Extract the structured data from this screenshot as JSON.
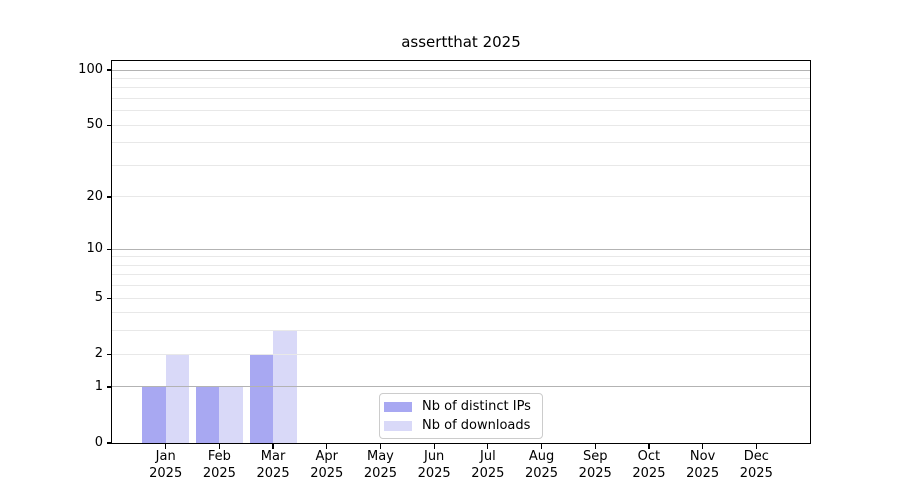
{
  "chart_data": {
    "type": "bar",
    "title": "assertthat 2025",
    "categories": [
      "Jan",
      "Feb",
      "Mar",
      "Apr",
      "May",
      "Jun",
      "Jul",
      "Aug",
      "Sep",
      "Oct",
      "Nov",
      "Dec"
    ],
    "x_second_line": "2025",
    "series": [
      {
        "name": "Nb of distinct IPs",
        "color": "#a8a8f2",
        "values": [
          1,
          1,
          2,
          0,
          0,
          0,
          0,
          0,
          0,
          0,
          0,
          0
        ]
      },
      {
        "name": "Nb of downloads",
        "color": "#d9d9f8",
        "values": [
          2,
          1,
          3,
          0,
          0,
          0,
          0,
          0,
          0,
          0,
          0,
          0
        ]
      }
    ],
    "yscale": "log10(value+1)",
    "ylim": [
      0,
      112
    ],
    "xlabel": "",
    "ylabel": "",
    "y_tick_values": [
      0,
      1,
      2,
      5,
      10,
      20,
      50,
      100
    ],
    "y_tick_labels": [
      "0",
      "1",
      "2",
      "5",
      "10",
      "20",
      "50",
      "100"
    ],
    "gridlines": {
      "dark_values": [
        1,
        10,
        100
      ],
      "light_values": [
        2,
        3,
        4,
        5,
        6,
        7,
        8,
        9,
        20,
        30,
        40,
        50,
        60,
        70,
        80,
        90
      ],
      "drawn_above_bars": true
    },
    "legend_position": "bottom-center",
    "colors": {
      "grid_light": "#e8e8e8",
      "grid_dark": "#b3b3b3",
      "axis": "#000000",
      "background": "#ffffff"
    }
  }
}
